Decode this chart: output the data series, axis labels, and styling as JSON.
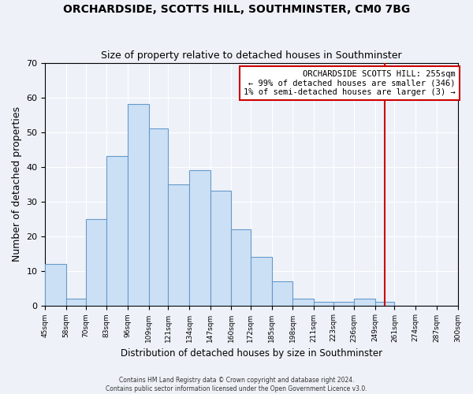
{
  "title": "ORCHARDSIDE, SCOTTS HILL, SOUTHMINSTER, CM0 7BG",
  "subtitle": "Size of property relative to detached houses in Southminster",
  "xlabel": "Distribution of detached houses by size in Southminster",
  "ylabel": "Number of detached properties",
  "bar_color": "#cce0f5",
  "bar_edge_color": "#6699cc",
  "background_color": "#eef2f8",
  "grid_color": "#ffffff",
  "vline_x": 255,
  "vline_color": "#cc0000",
  "annotation_title": "ORCHARDSIDE SCOTTS HILL: 255sqm",
  "annotation_line2": "← 99% of detached houses are smaller (346)",
  "annotation_line3": "1% of semi-detached houses are larger (3) →",
  "bin_edges": [
    45,
    58,
    70,
    83,
    96,
    109,
    121,
    134,
    147,
    160,
    172,
    185,
    198,
    211,
    223,
    236,
    249,
    261,
    274,
    287,
    300
  ],
  "bin_labels": [
    "45sqm",
    "58sqm",
    "70sqm",
    "83sqm",
    "96sqm",
    "109sqm",
    "121sqm",
    "134sqm",
    "147sqm",
    "160sqm",
    "172sqm",
    "185sqm",
    "198sqm",
    "211sqm",
    "223sqm",
    "236sqm",
    "249sqm",
    "261sqm",
    "274sqm",
    "287sqm",
    "300sqm"
  ],
  "bar_heights": [
    12,
    2,
    25,
    43,
    58,
    51,
    35,
    39,
    33,
    22,
    14,
    7,
    2,
    1,
    1,
    2,
    1,
    0,
    0,
    0
  ],
  "ylim": [
    0,
    70
  ],
  "yticks": [
    0,
    10,
    20,
    30,
    40,
    50,
    60,
    70
  ],
  "footer1": "Contains HM Land Registry data © Crown copyright and database right 2024.",
  "footer2": "Contains public sector information licensed under the Open Government Licence v3.0."
}
